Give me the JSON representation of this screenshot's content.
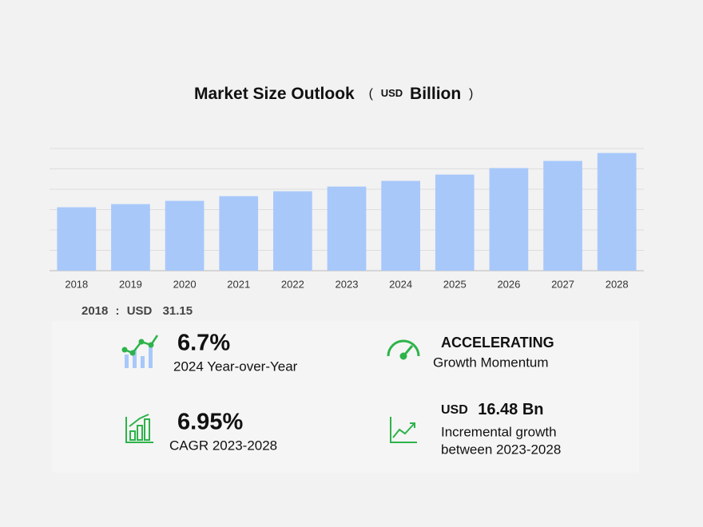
{
  "chart_data": {
    "type": "bar",
    "title": "Market Size Outlook",
    "title_unit": [
      "(",
      "USD",
      "Billion",
      ")"
    ],
    "categories": [
      "2018",
      "2019",
      "2020",
      "2021",
      "2022",
      "2023",
      "2024",
      "2025",
      "2026",
      "2027",
      "2028"
    ],
    "values": [
      31.15,
      32.7,
      34.3,
      36.6,
      39.0,
      41.3,
      44.1,
      47.2,
      50.4,
      53.9,
      57.8
    ],
    "color": "#a8c8fa",
    "ylim": [
      0,
      60
    ],
    "yticks": [
      0,
      10,
      20,
      30,
      40,
      50,
      60
    ],
    "grid": true
  },
  "highlight": {
    "separator": ":",
    "currency": "USD"
  },
  "stats": [
    {
      "value": "6.7%",
      "label": "2024 Year-over-Year"
    },
    {
      "value": "ACCELERATING",
      "label": "Growth Momentum"
    },
    {
      "value": "6.95%",
      "label": "CAGR 2023-2028"
    },
    {
      "currency": "USD",
      "value": "16.48 Bn",
      "label": [
        "Incremental growth",
        "between 2023-2028"
      ]
    }
  ]
}
